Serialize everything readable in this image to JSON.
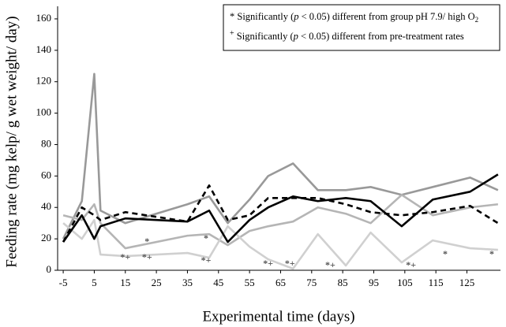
{
  "chart_data": {
    "type": "line",
    "xlabel": "Experimental time (days)",
    "ylabel": "Feeding rate (mg kelp/ g wet weight/ day)",
    "xlim": [
      -6.8,
      135.8
    ],
    "ylim": [
      0,
      168
    ],
    "xticks": [
      -5,
      5,
      15,
      25,
      35,
      45,
      55,
      65,
      75,
      85,
      95,
      105,
      115,
      125
    ],
    "yticks": [
      0,
      20,
      40,
      60,
      80,
      100,
      120,
      140,
      160
    ],
    "x": [
      -5,
      1,
      5,
      7,
      15,
      35,
      42,
      48,
      55,
      61,
      69,
      77,
      86,
      94,
      104,
      114,
      126,
      135
    ],
    "series": [
      {
        "color": "#999999",
        "dash": false,
        "values": [
          20,
          44,
          125,
          38,
          30,
          42,
          47,
          30,
          45,
          60,
          68,
          51,
          51,
          53,
          48,
          53,
          59,
          51
        ]
      },
      {
        "color": "#b5b5b5",
        "dash": false,
        "values": [
          35,
          32,
          42,
          30,
          14,
          22,
          23,
          16,
          25,
          28,
          31,
          40,
          36,
          30,
          48,
          35,
          40,
          42
        ]
      },
      {
        "color": "#d0d0d0",
        "dash": false,
        "values": [
          30,
          20,
          32,
          10,
          9,
          11,
          8,
          28,
          15,
          7,
          1,
          23,
          3,
          24,
          5,
          19,
          14,
          13
        ]
      },
      {
        "color": "#000000",
        "dash": true,
        "values": [
          18,
          40,
          35,
          32,
          37,
          31,
          54,
          32,
          35,
          46,
          46,
          46,
          42,
          37,
          35,
          37,
          41,
          30
        ]
      },
      {
        "color": "#000000",
        "dash": false,
        "values": [
          18,
          35,
          20,
          28,
          33,
          31,
          38,
          18,
          32,
          40,
          47,
          44,
          46,
          44,
          28,
          45,
          50,
          61
        ]
      }
    ],
    "notes": [
      [
        "*",
        " Significantly (",
        "p",
        " < 0.05) different from group pH 7.9/ high O",
        "2"
      ],
      [
        "+",
        " Significantly (",
        "p",
        " < 0.05) different from pre-treatment rates"
      ]
    ],
    "annotations": [
      {
        "text": "*+",
        "x": 15,
        "y": 8
      },
      {
        "text": "*+",
        "x": 22,
        "y": 8
      },
      {
        "text": "*",
        "x": 22,
        "y": 18
      },
      {
        "text": "*",
        "x": 41,
        "y": 20
      },
      {
        "text": "*+",
        "x": 41,
        "y": 6
      },
      {
        "text": "*+",
        "x": 61,
        "y": 4
      },
      {
        "text": "*+",
        "x": 68,
        "y": 4
      },
      {
        "text": "*+",
        "x": 81,
        "y": 3
      },
      {
        "text": "*+",
        "x": 107,
        "y": 3
      },
      {
        "text": "*",
        "x": 118,
        "y": 10
      },
      {
        "text": "*",
        "x": 133,
        "y": 10
      }
    ]
  }
}
